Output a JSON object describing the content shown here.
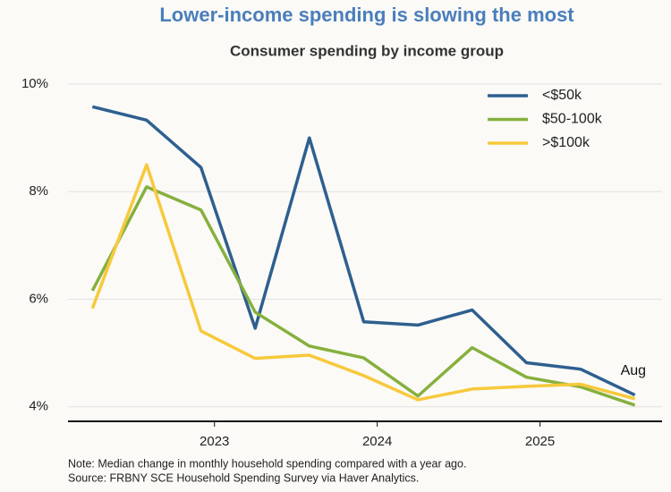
{
  "chart_data": {
    "type": "line",
    "title": "Lower-income spending is slowing the most",
    "subtitle": "Consumer spending by income group",
    "x": [
      2022.25,
      2022.583,
      2022.917,
      2023.25,
      2023.583,
      2023.917,
      2024.25,
      2024.583,
      2024.917,
      2025.25,
      2025.583
    ],
    "series": [
      {
        "name": "<$50k",
        "color": "#2e5f8f",
        "values": [
          9.58,
          9.33,
          8.45,
          5.46,
          9.0,
          5.58,
          5.52,
          5.8,
          4.82,
          4.7,
          4.22
        ]
      },
      {
        "name": "$50-100k",
        "color": "#86b03e",
        "values": [
          6.16,
          8.09,
          7.66,
          5.76,
          5.13,
          4.91,
          4.2,
          5.1,
          4.55,
          4.37,
          4.03
        ]
      },
      {
        "name": ">$100k",
        "color": "#f7c93b",
        "values": [
          5.83,
          8.5,
          5.41,
          4.9,
          4.96,
          4.58,
          4.13,
          4.33,
          4.38,
          4.42,
          4.15
        ]
      }
    ],
    "xlim": [
      2022.1,
      2025.75
    ],
    "xticks": [
      2023,
      2024,
      2025
    ],
    "ylim": [
      3.73,
      10.3
    ],
    "yticks": [
      {
        "value": 4,
        "label": "4%"
      },
      {
        "value": 6,
        "label": "6%"
      },
      {
        "value": 8,
        "label": "8%"
      },
      {
        "value": 10,
        "label": "10%"
      }
    ],
    "grid": true,
    "legend": "upper right",
    "annotation": "Aug",
    "note": "Note: Median change in monthly household spending compared with a year ago.",
    "source": "Source: FRBNY SCE Household Spending Survey via Haver Analytics."
  }
}
